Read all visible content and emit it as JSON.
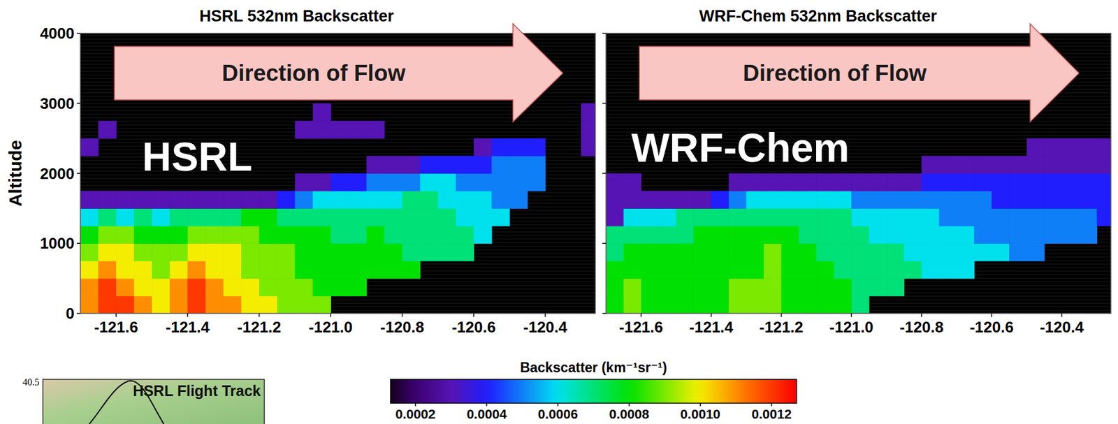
{
  "chart_data": [
    {
      "type": "heatmap",
      "title": "HSRL 532nm Backscatter",
      "annotation": "HSRL",
      "arrow_label": "Direction of Flow",
      "y_label": "Altitude",
      "xlim": [
        -121.7,
        -120.26
      ],
      "ylim": [
        0,
        4000
      ],
      "xticks": [
        -121.6,
        -121.4,
        -121.2,
        {
          "value": -121,
          "label": "-121.0"
        },
        -120.8,
        -120.6,
        -120.4
      ],
      "yticks": [
        0,
        1000,
        2000,
        3000,
        4000
      ],
      "tick_labels": true,
      "x_edges": [
        -121.7,
        -121.65,
        -121.6,
        -121.55,
        -121.5,
        -121.45,
        -121.4,
        -121.35,
        -121.3,
        -121.25,
        -121.2,
        -121.15,
        -121.1,
        -121.05,
        -121.0,
        -120.95,
        -120.9,
        -120.85,
        -120.8,
        -120.75,
        -120.7,
        -120.65,
        -120.6,
        -120.55,
        -120.5,
        -120.45,
        -120.4,
        -120.35,
        -120.3,
        -120.25
      ],
      "y_edges": [
        0,
        250,
        500,
        750,
        1000,
        1250,
        1500,
        1750,
        2000,
        2250,
        2500,
        2750,
        3000
      ],
      "cells": [
        [
          0.0011,
          0.0012,
          0.0012,
          0.0011,
          0.001,
          0.0011,
          0.0012,
          0.0011,
          0.0011,
          0.001,
          0.001,
          0.0009,
          0.0009,
          0.0009,
          null,
          null,
          null,
          null,
          null,
          null,
          null,
          null,
          null,
          null,
          null,
          null,
          null,
          null,
          null
        ],
        [
          0.0011,
          0.0012,
          0.0011,
          0.001,
          0.001,
          0.0011,
          0.0012,
          0.0011,
          0.001,
          0.001,
          0.0009,
          0.0009,
          0.0009,
          0.0008,
          0.0008,
          0.0008,
          null,
          null,
          null,
          null,
          null,
          null,
          null,
          null,
          null,
          null,
          null,
          null,
          null
        ],
        [
          0.001,
          0.0011,
          0.001,
          0.001,
          0.0009,
          0.001,
          0.0011,
          0.001,
          0.001,
          0.0009,
          0.0009,
          0.0009,
          0.0008,
          0.0008,
          0.0008,
          0.0008,
          0.0008,
          0.0008,
          0.0008,
          null,
          null,
          null,
          null,
          null,
          null,
          null,
          null,
          null,
          null
        ],
        [
          0.0009,
          0.001,
          0.001,
          0.0009,
          0.0009,
          0.0009,
          0.001,
          0.001,
          0.001,
          0.0009,
          0.0009,
          0.0009,
          0.0008,
          0.0008,
          0.0008,
          0.0008,
          0.0008,
          0.0008,
          0.0007,
          0.0007,
          0.0007,
          0.0007,
          null,
          null,
          null,
          null,
          null,
          null,
          null
        ],
        [
          0.0008,
          0.0009,
          0.0009,
          0.0008,
          0.0008,
          0.0008,
          0.0009,
          0.0009,
          0.0009,
          0.0009,
          0.0008,
          0.0008,
          0.0008,
          0.0008,
          0.0007,
          0.0007,
          0.0008,
          0.0007,
          0.0007,
          0.0007,
          0.0007,
          0.0007,
          0.0006,
          null,
          null,
          null,
          null,
          null,
          null
        ],
        [
          0.0006,
          0.0007,
          0.0006,
          0.0007,
          0.0006,
          0.0007,
          0.0007,
          0.0007,
          0.0007,
          0.0008,
          0.0008,
          0.0007,
          0.0007,
          0.0007,
          0.0007,
          0.0007,
          0.0007,
          0.0007,
          0.0007,
          0.0007,
          0.0007,
          0.0006,
          0.0006,
          0.0006,
          null,
          null,
          null,
          null,
          null
        ],
        [
          0.0003,
          0.0003,
          0.0003,
          0.0003,
          0.0003,
          0.0003,
          0.0003,
          0.0003,
          0.0003,
          0.0003,
          0.0003,
          0.0004,
          0.0005,
          0.0006,
          0.0006,
          0.0006,
          0.0006,
          0.0006,
          0.0007,
          0.0007,
          0.0006,
          0.0006,
          0.0006,
          0.0005,
          0.0005,
          null,
          null,
          null,
          null
        ],
        [
          null,
          null,
          null,
          null,
          null,
          null,
          null,
          null,
          null,
          null,
          null,
          null,
          0.0003,
          0.0003,
          0.0004,
          0.0004,
          0.0005,
          0.0005,
          0.0005,
          0.0006,
          0.0006,
          0.0005,
          0.0005,
          0.0005,
          0.0005,
          0.0005,
          null,
          null,
          null
        ],
        [
          null,
          null,
          null,
          null,
          null,
          null,
          null,
          null,
          null,
          null,
          null,
          null,
          null,
          null,
          null,
          null,
          0.0003,
          0.0003,
          0.0003,
          0.0004,
          0.0004,
          0.0004,
          0.0004,
          0.0005,
          0.0005,
          0.0005,
          null,
          null,
          null
        ],
        [
          0.0003,
          null,
          null,
          null,
          null,
          null,
          null,
          null,
          null,
          null,
          null,
          null,
          null,
          null,
          null,
          null,
          null,
          null,
          null,
          null,
          null,
          null,
          0.0003,
          0.0004,
          0.0004,
          0.0004,
          null,
          null,
          0.0003
        ],
        [
          null,
          0.0003,
          null,
          null,
          null,
          null,
          null,
          null,
          null,
          null,
          null,
          null,
          0.0003,
          0.0003,
          0.0003,
          0.0003,
          0.0003,
          null,
          null,
          null,
          null,
          null,
          null,
          null,
          null,
          null,
          null,
          null,
          0.0003
        ],
        [
          null,
          null,
          null,
          null,
          null,
          null,
          null,
          null,
          null,
          null,
          null,
          null,
          null,
          0.0003,
          null,
          null,
          null,
          null,
          null,
          null,
          null,
          null,
          null,
          null,
          null,
          null,
          null,
          null,
          0.0003
        ]
      ]
    },
    {
      "type": "heatmap",
      "title": "WRF-Chem 532nm Backscatter",
      "annotation": "WRF-Chem",
      "arrow_label": "Direction of Flow",
      "xlim": [
        -121.7,
        -120.26
      ],
      "ylim": [
        0,
        4000
      ],
      "xticks": [
        -121.6,
        -121.4,
        -121.2,
        {
          "value": -121,
          "label": "-121.0"
        },
        -120.8,
        -120.6,
        -120.4
      ],
      "yticks": [
        0,
        1000,
        2000,
        3000,
        4000
      ],
      "tick_labels": "x",
      "x_edges": [
        -121.7,
        -121.65,
        -121.6,
        -121.55,
        -121.5,
        -121.45,
        -121.4,
        -121.35,
        -121.3,
        -121.25,
        -121.2,
        -121.15,
        -121.1,
        -121.05,
        -121.0,
        -120.95,
        -120.9,
        -120.85,
        -120.8,
        -120.75,
        -120.7,
        -120.65,
        -120.6,
        -120.55,
        -120.5,
        -120.45,
        -120.4,
        -120.35,
        -120.3,
        -120.25
      ],
      "y_edges": [
        0,
        250,
        500,
        750,
        1000,
        1250,
        1500,
        1750,
        2000,
        2250,
        2500,
        2750,
        3000
      ],
      "cells": [
        [
          0.0008,
          0.0009,
          0.0008,
          0.0008,
          0.0008,
          0.0008,
          0.0008,
          0.0009,
          0.0009,
          0.0009,
          0.0008,
          0.0008,
          0.0008,
          0.0008,
          0.0007,
          null,
          null,
          null,
          null,
          null,
          null,
          null,
          null,
          null,
          null,
          null,
          null,
          null,
          null
        ],
        [
          0.0008,
          0.0009,
          0.0008,
          0.0008,
          0.0008,
          0.0008,
          0.0008,
          0.0009,
          0.0009,
          0.0009,
          0.0008,
          0.0008,
          0.0008,
          0.0008,
          0.0007,
          0.0007,
          0.0007,
          null,
          null,
          null,
          null,
          null,
          null,
          null,
          null,
          null,
          null,
          null,
          null
        ],
        [
          0.0008,
          0.0008,
          0.0008,
          0.0008,
          0.0008,
          0.0008,
          0.0008,
          0.0008,
          0.0008,
          0.0009,
          0.0008,
          0.0008,
          0.0008,
          0.0007,
          0.0007,
          0.0007,
          0.0007,
          0.0007,
          0.0006,
          0.0006,
          0.0006,
          null,
          null,
          null,
          null,
          null,
          null,
          null,
          null
        ],
        [
          0.0007,
          0.0008,
          0.0008,
          0.0008,
          0.0008,
          0.0008,
          0.0008,
          0.0008,
          0.0008,
          0.0009,
          0.0008,
          0.0008,
          0.0007,
          0.0007,
          0.0007,
          0.0007,
          0.0007,
          0.0006,
          0.0006,
          0.0006,
          0.0006,
          0.0006,
          0.0006,
          0.0005,
          0.0005,
          null,
          null,
          null,
          null
        ],
        [
          0.0007,
          0.0007,
          0.0007,
          0.0007,
          0.0007,
          0.0008,
          0.0008,
          0.0008,
          0.0008,
          0.0008,
          0.0008,
          0.0007,
          0.0007,
          0.0007,
          0.0007,
          0.0006,
          0.0006,
          0.0006,
          0.0006,
          0.0006,
          0.0006,
          0.0005,
          0.0005,
          0.0005,
          0.0005,
          0.0005,
          0.0005,
          0.0005,
          null
        ],
        [
          0.0003,
          0.0006,
          0.0006,
          0.0006,
          0.0007,
          0.0007,
          0.0007,
          0.0007,
          0.0007,
          0.0007,
          0.0007,
          0.0007,
          0.0007,
          0.0007,
          0.0006,
          0.0006,
          0.0006,
          0.0006,
          0.0006,
          0.0005,
          0.0005,
          0.0005,
          0.0005,
          0.0005,
          0.0005,
          0.0005,
          0.0005,
          0.0005,
          0.0004
        ],
        [
          0.0003,
          0.0003,
          0.0003,
          0.0003,
          0.0003,
          0.0003,
          0.0004,
          0.0005,
          0.0006,
          0.0006,
          0.0006,
          0.0006,
          0.0006,
          0.0006,
          0.0005,
          0.0005,
          0.0005,
          0.0005,
          0.0005,
          0.0005,
          0.0005,
          0.0005,
          0.0004,
          0.0004,
          0.0004,
          0.0004,
          0.0004,
          0.0004,
          0.0004
        ],
        [
          0.0003,
          0.0003,
          null,
          null,
          null,
          null,
          null,
          0.0003,
          0.0003,
          0.0003,
          0.0003,
          0.0003,
          0.0003,
          0.0003,
          0.0003,
          0.0003,
          0.0003,
          0.0003,
          0.0004,
          0.0004,
          0.0004,
          0.0004,
          0.0004,
          0.0004,
          0.0004,
          0.0004,
          0.0004,
          0.0004,
          0.0004
        ],
        [
          null,
          null,
          null,
          null,
          null,
          null,
          null,
          null,
          null,
          null,
          null,
          null,
          null,
          null,
          null,
          null,
          null,
          null,
          0.0003,
          0.0003,
          0.0003,
          0.0003,
          0.0003,
          0.0003,
          0.0003,
          0.0003,
          0.0003,
          0.0003,
          0.0003
        ],
        [
          null,
          null,
          null,
          null,
          null,
          null,
          null,
          null,
          null,
          null,
          null,
          null,
          null,
          null,
          null,
          null,
          null,
          null,
          null,
          null,
          null,
          null,
          null,
          null,
          0.0003,
          0.0003,
          0.0003,
          0.0003,
          0.0003
        ],
        [
          null,
          null,
          null,
          null,
          null,
          null,
          null,
          null,
          null,
          null,
          null,
          null,
          null,
          null,
          null,
          null,
          null,
          null,
          null,
          null,
          null,
          null,
          null,
          null,
          null,
          null,
          null,
          null,
          null
        ],
        [
          null,
          null,
          null,
          null,
          null,
          null,
          null,
          null,
          null,
          null,
          null,
          null,
          null,
          null,
          null,
          null,
          null,
          null,
          null,
          null,
          null,
          null,
          null,
          null,
          null,
          null,
          null,
          null,
          null
        ]
      ]
    }
  ],
  "colorbar": {
    "label": "Backscatter (km⁻¹sr⁻¹)",
    "range": [
      0.00013,
      0.00127
    ],
    "ticks": [
      0.0002,
      0.0004,
      0.0006,
      0.0008,
      {
        "value": 0.001,
        "label": "0.0010"
      },
      0.0012
    ]
  },
  "inset": {
    "title": "HSRL Flight Track",
    "y_ticks": [
      40.5
    ]
  }
}
